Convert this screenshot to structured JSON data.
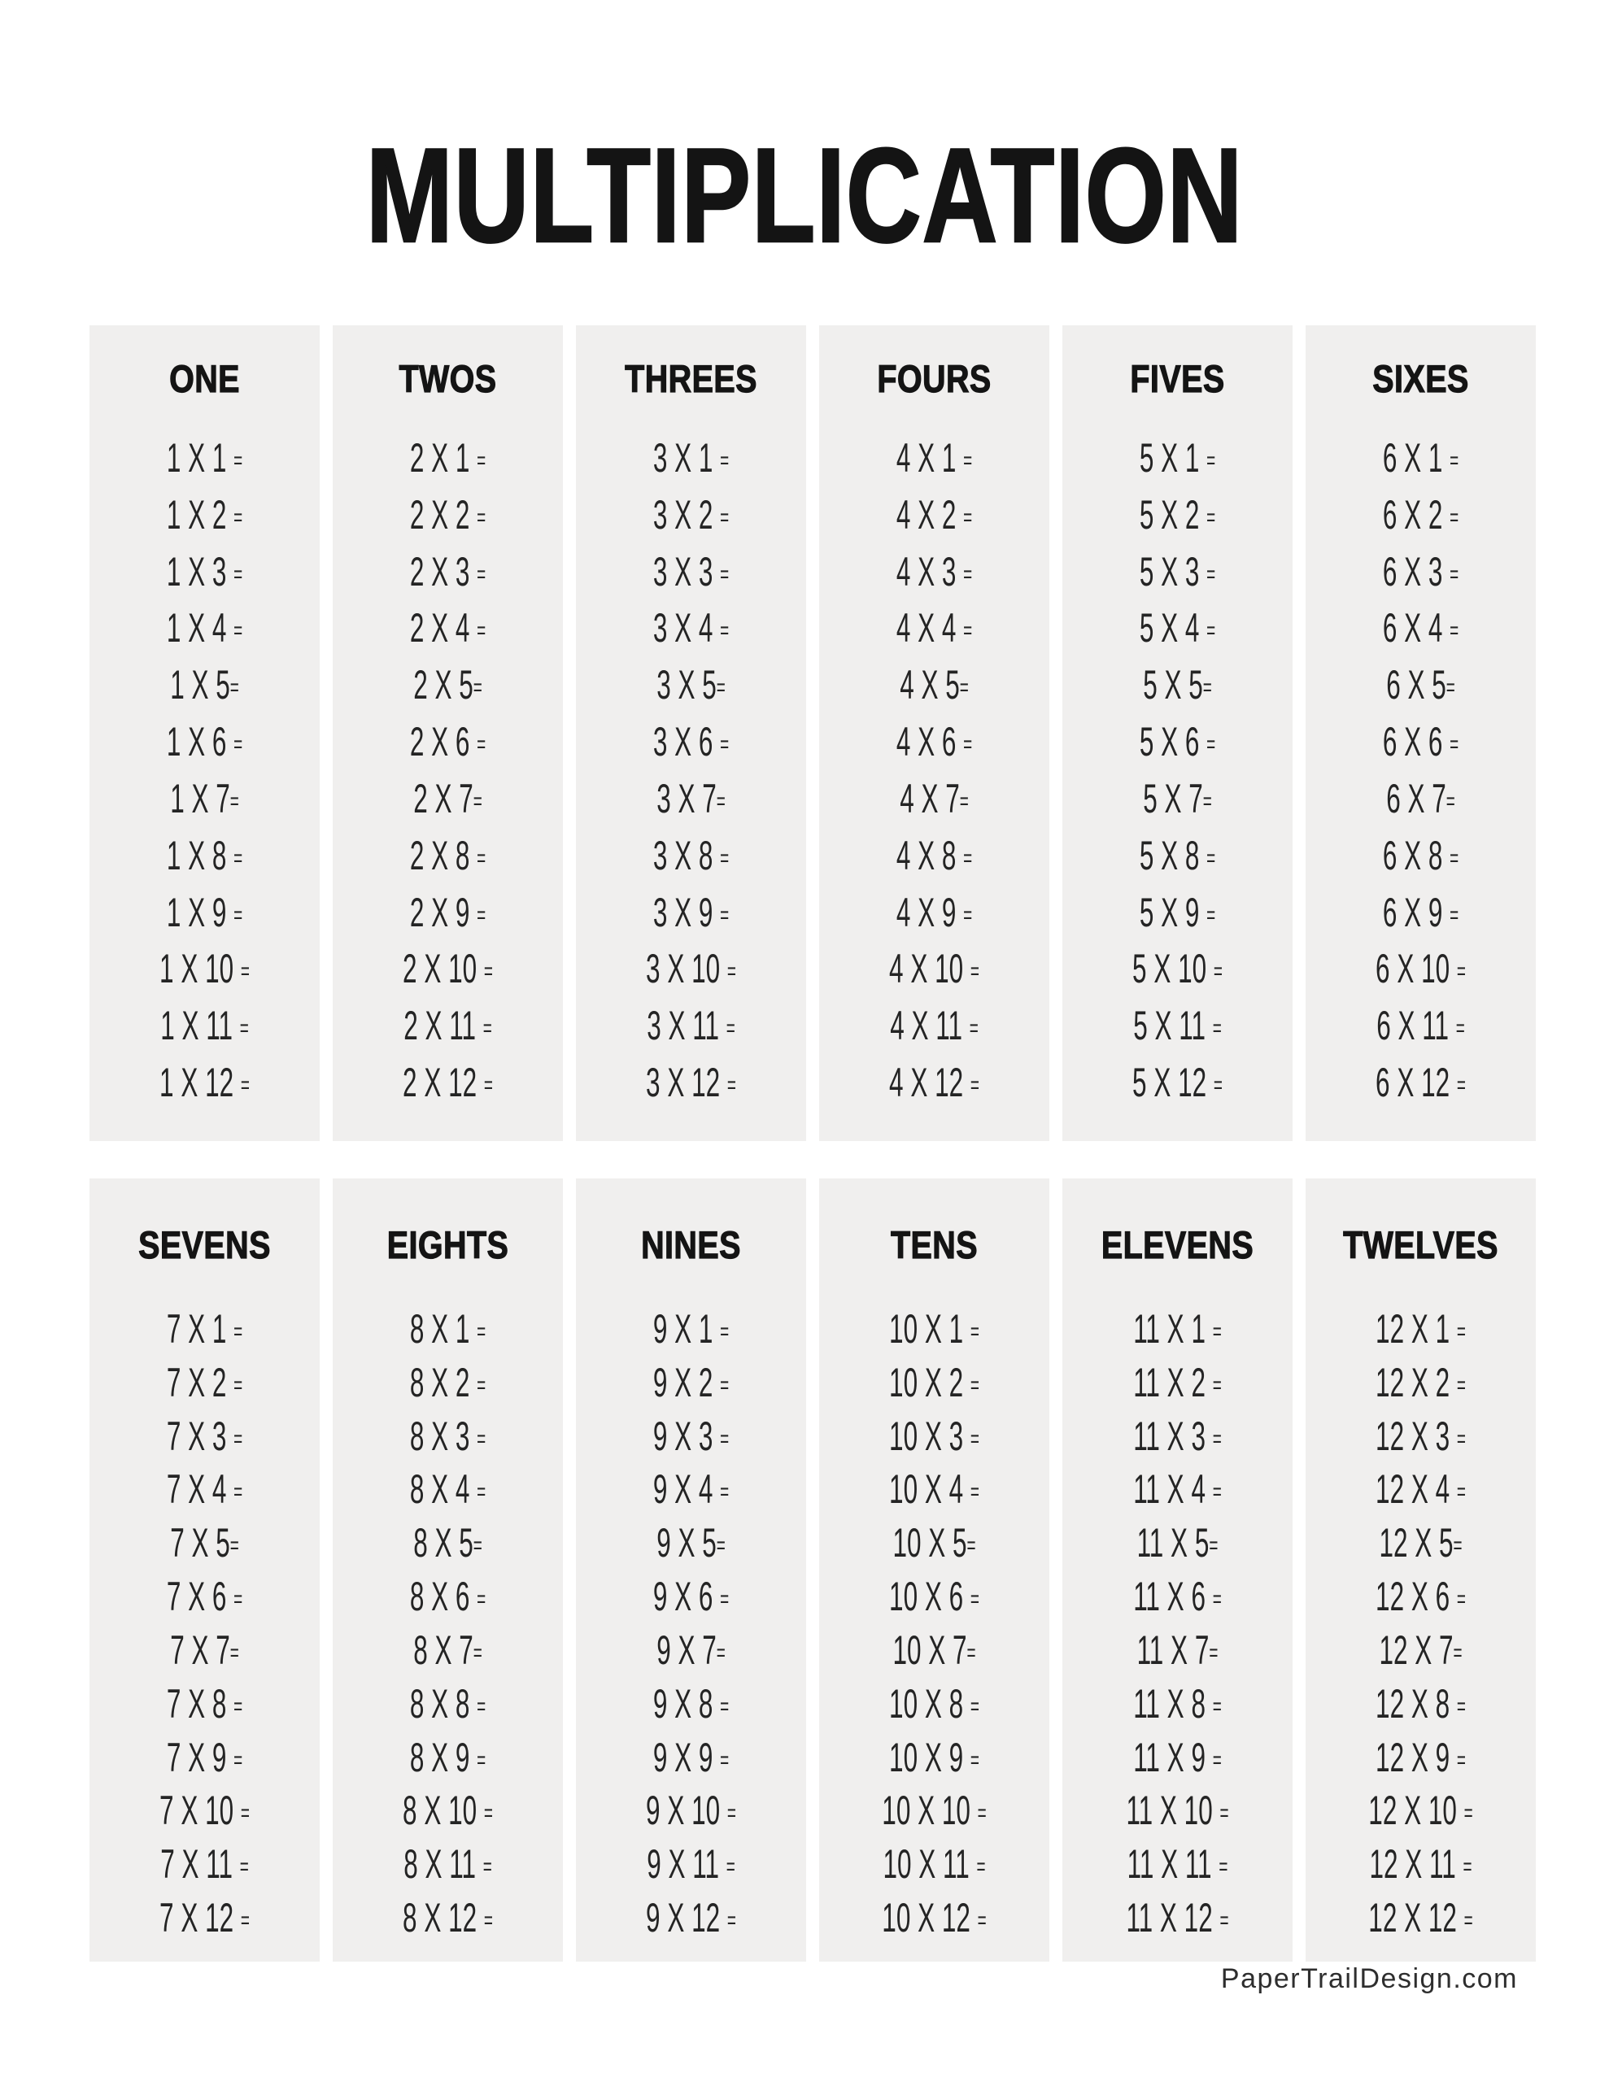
{
  "title": "MULTIPLICATION",
  "colors": {
    "card_bg": "#f0efee",
    "text": "#242424",
    "heading": "#141414"
  },
  "tables": [
    {
      "heading": "ONE",
      "items": [
        "1 X 1 =",
        "1 X 2 =",
        "1 X 3 =",
        "1 X 4 =",
        "1 X 5=",
        "1 X 6 =",
        "1 X 7=",
        "1 X 8 =",
        "1 X 9 =",
        "1 X 10 =",
        "1 X 11 =",
        "1 X 12 ="
      ]
    },
    {
      "heading": "TWOS",
      "items": [
        "2 X 1 =",
        "2 X 2 =",
        "2 X 3 =",
        "2 X 4 =",
        "2 X 5=",
        "2 X 6 =",
        "2 X 7=",
        "2 X 8 =",
        "2 X 9 =",
        "2 X 10 =",
        "2 X 11 =",
        "2 X 12 ="
      ]
    },
    {
      "heading": "THREES",
      "items": [
        "3 X 1 =",
        "3 X 2 =",
        "3 X 3 =",
        "3 X 4 =",
        "3 X 5=",
        "3 X 6 =",
        "3 X 7=",
        "3 X 8 =",
        "3 X 9 =",
        "3 X 10 =",
        "3 X 11 =",
        "3 X 12 ="
      ]
    },
    {
      "heading": "FOURS",
      "items": [
        "4 X 1 =",
        "4 X 2 =",
        "4 X 3 =",
        "4 X 4 =",
        "4 X 5=",
        "4 X 6 =",
        "4 X 7=",
        "4 X 8 =",
        "4 X 9 =",
        "4 X 10 =",
        "4 X 11 =",
        "4 X 12 ="
      ]
    },
    {
      "heading": "FIVES",
      "items": [
        "5 X 1 =",
        "5 X 2 =",
        "5 X 3 =",
        "5 X 4 =",
        "5 X 5=",
        "5 X 6 =",
        "5 X 7=",
        "5 X 8 =",
        "5 X 9 =",
        "5 X 10 =",
        "5 X 11 =",
        "5 X 12 ="
      ]
    },
    {
      "heading": "SIXES",
      "items": [
        "6 X 1 =",
        "6 X 2 =",
        "6 X 3 =",
        "6 X 4 =",
        "6 X 5=",
        "6 X 6 =",
        "6 X 7=",
        "6 X 8 =",
        "6 X 9 =",
        "6 X 10 =",
        "6 X 11 =",
        "6 X 12 ="
      ]
    },
    {
      "heading": "SEVENS",
      "items": [
        "7 X 1 =",
        "7 X 2 =",
        "7 X 3 =",
        "7 X 4 =",
        "7 X 5=",
        "7 X 6 =",
        "7 X 7=",
        "7 X 8 =",
        "7 X 9 =",
        "7 X 10 =",
        "7 X 11 =",
        "7 X 12 ="
      ]
    },
    {
      "heading": "EIGHTS",
      "items": [
        "8 X 1 =",
        "8 X 2 =",
        "8 X 3 =",
        "8 X 4 =",
        "8 X 5=",
        "8 X 6 =",
        "8 X 7=",
        "8 X 8 =",
        "8 X 9 =",
        "8 X 10 =",
        "8 X 11 =",
        "8 X 12 ="
      ]
    },
    {
      "heading": "NINES",
      "items": [
        "9 X 1 =",
        "9 X 2 =",
        "9 X 3 =",
        "9 X 4 =",
        "9 X 5=",
        "9 X 6 =",
        "9 X 7=",
        "9 X 8 =",
        "9 X 9 =",
        "9 X 10 =",
        "9 X 11 =",
        "9 X 12 ="
      ]
    },
    {
      "heading": "TENS",
      "items": [
        "10 X 1 =",
        "10 X 2 =",
        "10 X 3 =",
        "10 X 4 =",
        "10 X 5=",
        "10 X 6 =",
        "10 X 7=",
        "10 X 8 =",
        "10 X 9 =",
        "10 X 10 =",
        "10 X 11 =",
        "10 X 12 ="
      ]
    },
    {
      "heading": "ELEVENS",
      "items": [
        "11 X 1 =",
        "11 X 2 =",
        "11 X 3 =",
        "11 X 4 =",
        "11 X 5=",
        "11 X 6 =",
        "11 X 7=",
        "11 X 8 =",
        "11 X 9 =",
        "11 X 10 =",
        "11 X 11 =",
        "11 X 12 ="
      ]
    },
    {
      "heading": "TWELVES",
      "items": [
        "12 X 1 =",
        "12 X 2 =",
        "12 X 3 =",
        "12 X 4 =",
        "12 X 5=",
        "12 X 6 =",
        "12 X 7=",
        "12 X 8 =",
        "12 X 9 =",
        "12 X 10 =",
        "12 X 11 =",
        "12 X 12 ="
      ]
    }
  ],
  "footer": {
    "watermark": "PaperTrailDesign.com"
  }
}
